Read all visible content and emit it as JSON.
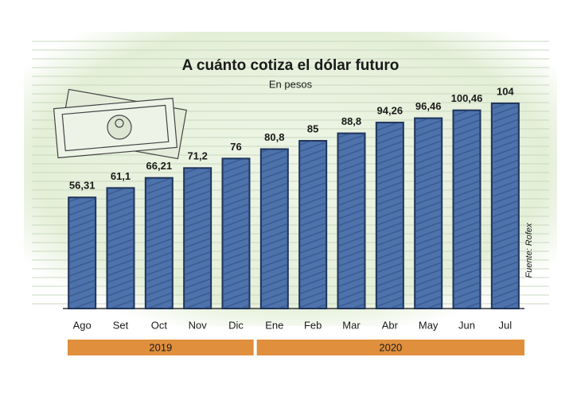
{
  "chart_data": {
    "type": "bar",
    "title": "A cuánto cotiza el dólar futuro",
    "subtitle": "En pesos",
    "categories": [
      "Ago",
      "Set",
      "Oct",
      "Nov",
      "Dic",
      "Ene",
      "Feb",
      "Mar",
      "Abr",
      "May",
      "Jun",
      "Jul"
    ],
    "values": [
      56.31,
      61.1,
      66.21,
      71.2,
      76,
      80.8,
      85,
      88.8,
      94.26,
      96.46,
      100.46,
      104
    ],
    "value_labels": [
      "56,31",
      "61,1",
      "66,21",
      "71,2",
      "76",
      "80,8",
      "85",
      "88,8",
      "94,26",
      "96,46",
      "100,46",
      "104"
    ],
    "color": "#4d72ac",
    "ylim": [
      0,
      110
    ],
    "category_groups": [
      {
        "label": "2019",
        "first": "Ago",
        "last": "Dic"
      },
      {
        "label": "2020",
        "first": "Ene",
        "last": "Jul"
      }
    ],
    "group_color": "#e08f3c",
    "source": "Fuente: Rofex"
  }
}
